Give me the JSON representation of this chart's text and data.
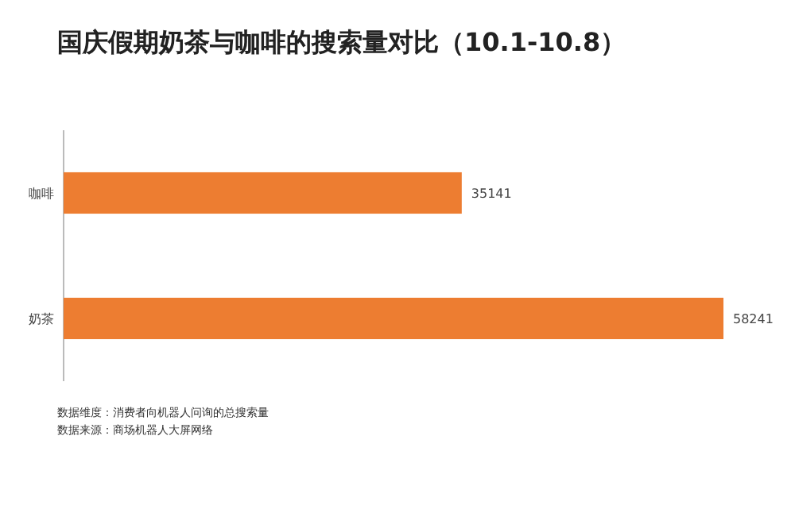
{
  "chart_data": {
    "type": "bar",
    "orientation": "horizontal",
    "title": "国庆假期奶茶与咖啡的搜索量对比（10.1-10.8）",
    "categories": [
      "咖啡",
      "奶茶"
    ],
    "values": [
      35141,
      58241
    ],
    "color": "#ed7d31",
    "data_labels": true,
    "annotations": [
      "数据维度：消费者向机器人问询的总搜索量",
      "数据来源：商场机器人大屏网络"
    ]
  }
}
